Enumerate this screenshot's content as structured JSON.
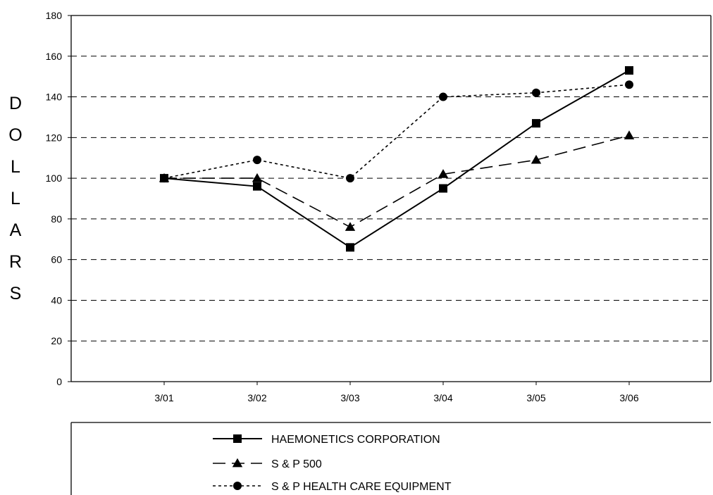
{
  "chart_data": {
    "type": "line",
    "title": "",
    "xlabel": "",
    "ylabel": "DOLLARS",
    "categories": [
      "3/01",
      "3/02",
      "3/03",
      "3/04",
      "3/05",
      "3/06"
    ],
    "ylim": [
      0,
      180
    ],
    "yticks": [
      0,
      20,
      40,
      60,
      80,
      100,
      120,
      140,
      160,
      180
    ],
    "grid": "horizontal dashed",
    "legend_position": "bottom",
    "series": [
      {
        "name": "HAEMONETICS CORPORATION",
        "values": [
          100,
          96,
          66,
          95,
          127,
          153
        ],
        "line_style": "solid",
        "marker": "square",
        "color": "#000000"
      },
      {
        "name": "S & P 500",
        "values": [
          100,
          100,
          76,
          102,
          109,
          121
        ],
        "line_style": "dashed",
        "marker": "triangle",
        "color": "#000000"
      },
      {
        "name": "S & P HEALTH CARE EQUIPMENT",
        "values": [
          100,
          109,
          100,
          140,
          142,
          146
        ],
        "line_style": "dotted",
        "marker": "circle",
        "color": "#000000"
      }
    ]
  }
}
